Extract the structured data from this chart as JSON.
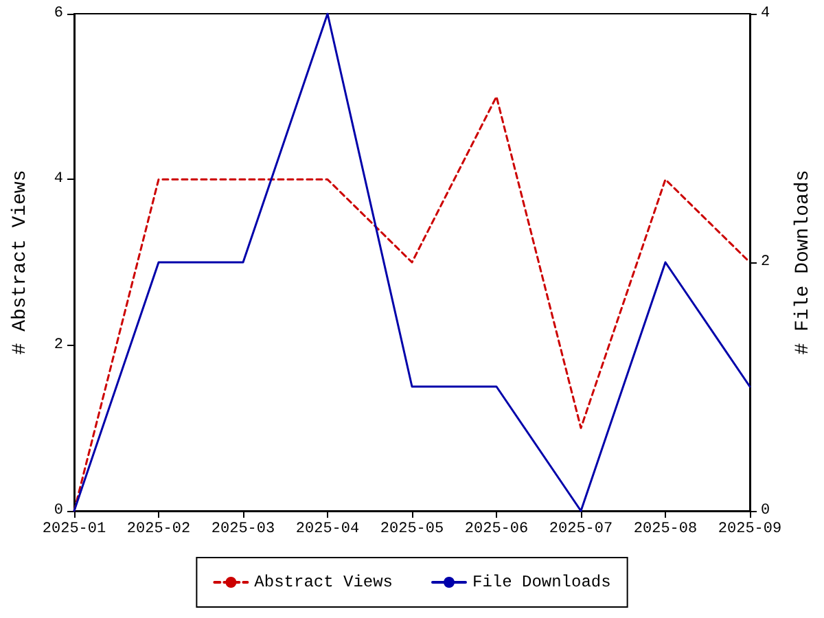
{
  "chart_data": {
    "type": "line",
    "ylabel": "# Abstract Views",
    "y2label": "# File Downloads",
    "categories": [
      "2025-01",
      "2025-02",
      "2025-03",
      "2025-04",
      "2025-05",
      "2025-06",
      "2025-07",
      "2025-08",
      "2025-09"
    ],
    "series": [
      {
        "name": "Abstract Views",
        "color": "#cc0000",
        "line_style": "dashed",
        "values": [
          0,
          4,
          4,
          4,
          3,
          5,
          1,
          4,
          3
        ]
      },
      {
        "name": "File Downloads",
        "color": "#0000aa",
        "line_style": "solid",
        "axis": "y2",
        "values": [
          0,
          2,
          2,
          4,
          1,
          1,
          0,
          2,
          1
        ]
      }
    ],
    "ylim": [
      0,
      6
    ],
    "yticks": [
      0,
      2,
      4,
      6
    ],
    "y2lim": [
      0,
      4
    ],
    "y2ticks": [
      0,
      2,
      4
    ],
    "grid": false,
    "legend": "bottom",
    "marker": "none"
  }
}
